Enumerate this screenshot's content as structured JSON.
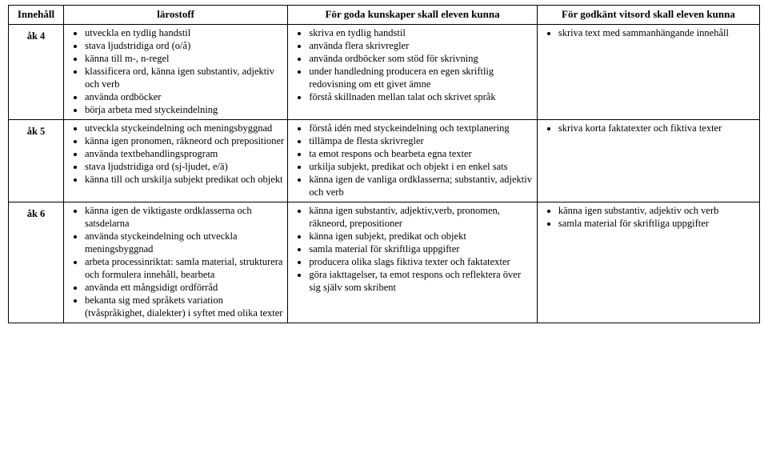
{
  "headers": {
    "c1": "Innehåll",
    "c2": "lärostoff",
    "c3": "För goda kunskaper skall eleven kunna",
    "c4": "För godkänt vitsord skall eleven kunna"
  },
  "rows": [
    {
      "grade": "åk 4",
      "larostoff": [
        "utveckla en tydlig handstil",
        "stava ljudstridiga ord (o/å)",
        "känna till m-, n-regel",
        "klassificera ord, känna igen substantiv, adjektiv och verb",
        "använda ordböcker",
        "börja arbeta med styckeindelning"
      ],
      "goda": [
        "skriva en tydlig handstil",
        "använda flera skrivregler",
        "använda ordböcker som stöd för skrivning",
        "under handledning producera en egen skriftlig redovisning om ett givet ämne",
        "förstå skillnaden mellan talat och skrivet språk"
      ],
      "godkant": [
        "skriva text med sammanhängande innehåll"
      ]
    },
    {
      "grade": "åk 5",
      "larostoff": [
        "utveckla styckeindelning och meningsbyggnad",
        "känna igen pronomen, räkneord och prepositioner",
        "använda textbehandlingsprogram",
        "stava ljudstridiga ord (sj-ljudet, e/ä)",
        "känna till och urskilja subjekt predikat och objekt"
      ],
      "goda": [
        "förstå idén med styckeindelning och textplanering",
        "tillämpa de flesta skrivregler",
        "ta emot respons och bearbeta egna texter",
        "urkilja subjekt, predikat och objekt i en enkel sats",
        "känna igen de vanliga ordklasserna; substantiv, adjektiv och verb"
      ],
      "godkant": [
        "skriva korta faktatexter och fiktiva texter"
      ]
    },
    {
      "grade": "åk 6",
      "larostoff": [
        "känna igen de viktigaste ordklasserna och satsdelarna",
        "använda styckeindelning och utveckla meningsbyggnad",
        "arbeta processinriktat: samla material, strukturera och formulera innehåll, bearbeta",
        "använda ett mångsidigt ordförråd",
        "bekanta sig med språkets variation (tvåspråkighet, dialekter) i syftet med olika texter"
      ],
      "goda": [
        "känna igen substantiv, adjektiv,verb, pronomen, räkneord, prepositioner",
        "känna igen subjekt, predikat och objekt",
        "samla material för skriftliga uppgifter",
        "producera olika slags fiktiva texter och faktatexter",
        "göra iakttagelser, ta emot respons och reflektera över sig själv som skribent"
      ],
      "godkant": [
        "känna igen substantiv, adjektiv och verb",
        "samla material för skriftliga uppgifter"
      ]
    }
  ]
}
